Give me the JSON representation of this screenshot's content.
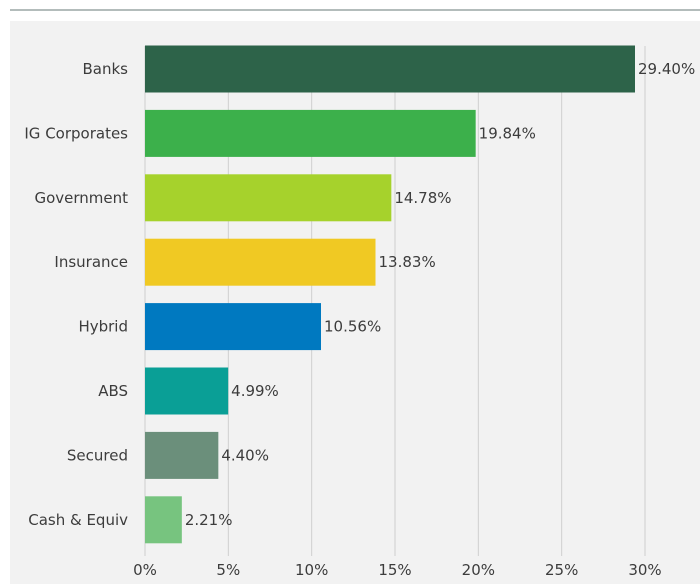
{
  "chart_data": {
    "type": "bar",
    "orientation": "horizontal",
    "categories": [
      "Banks",
      "IG Corporates",
      "Government",
      "Insurance",
      "Hybrid",
      "ABS",
      "Secured",
      "Cash & Equiv"
    ],
    "values": [
      29.4,
      19.84,
      14.78,
      13.83,
      10.56,
      4.99,
      4.4,
      2.21
    ],
    "value_labels": [
      "29.40%",
      "19.84%",
      "14.78%",
      "13.83%",
      "10.56%",
      "4.99%",
      "4.40%",
      "2.21%"
    ],
    "colors": [
      "#2d6349",
      "#3cb04b",
      "#a6d22c",
      "#f0c923",
      "#0079c0",
      "#0a9f96",
      "#6b8f7b",
      "#77c47f"
    ],
    "xlim": [
      0,
      30
    ],
    "xticks": [
      0,
      5,
      10,
      15,
      20,
      25,
      30
    ],
    "xtick_labels": [
      "0%",
      "5%",
      "10%",
      "15%",
      "20%",
      "25%",
      "30%"
    ],
    "grid": "vertical",
    "legend": "none",
    "title": "",
    "xlabel": "",
    "ylabel": ""
  }
}
